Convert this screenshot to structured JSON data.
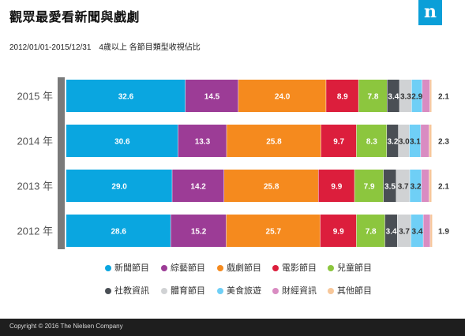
{
  "header": {
    "title": "觀眾最愛看新聞與戲劇",
    "subtitle": "2012/01/01-2015/12/31　4歲以上 各節目類型收視佔比",
    "logo_letter": "n"
  },
  "footer": {
    "copyright": "Copyright © 2016 The Nielsen Company"
  },
  "chart_data": {
    "type": "bar",
    "orientation": "horizontal",
    "stacked": true,
    "categories": [
      "2015 年",
      "2014 年",
      "2013 年",
      "2012 年"
    ],
    "series": [
      {
        "name": "新聞節目",
        "color": "#0aa6e0",
        "values": [
          32.6,
          30.6,
          29.0,
          28.6
        ]
      },
      {
        "name": "綜藝節目",
        "color": "#9c3c96",
        "values": [
          14.5,
          13.3,
          14.2,
          15.2
        ]
      },
      {
        "name": "戲劇節目",
        "color": "#f58a1e",
        "values": [
          24.0,
          25.8,
          25.8,
          25.7
        ]
      },
      {
        "name": "電影節目",
        "color": "#dc1e3c",
        "values": [
          8.9,
          9.7,
          9.9,
          9.9
        ]
      },
      {
        "name": "兒童節目",
        "color": "#8cc63e",
        "values": [
          7.8,
          8.3,
          7.9,
          7.8
        ]
      },
      {
        "name": "社教資訊",
        "color": "#4a4f55",
        "values": [
          3.4,
          3.2,
          3.5,
          3.4
        ]
      },
      {
        "name": "體育節目",
        "color": "#d0d2d4",
        "values": [
          3.3,
          3.0,
          3.7,
          3.7
        ]
      },
      {
        "name": "美食旅遊",
        "color": "#6fcff6",
        "values": [
          2.9,
          3.1,
          3.2,
          3.4
        ]
      },
      {
        "name": "財經資訊",
        "color": "#d98cc2",
        "values": [
          2.1,
          2.3,
          2.1,
          1.9
        ]
      },
      {
        "name": "其他節目",
        "color": "#f7c79a",
        "values": [
          0.5,
          0.7,
          0.7,
          0.6
        ]
      }
    ],
    "bar_labels": [
      [
        "32.6",
        "14.5",
        "24.0",
        "8.9",
        "7.8",
        "3.4",
        "3.3",
        "2.9",
        "2.1",
        ""
      ],
      [
        "30.6",
        "13.3",
        "25.8",
        "9.7",
        "8.3",
        "3.2",
        "3.0",
        "3.1",
        "2.3",
        ""
      ],
      [
        "29.0",
        "14.2",
        "25.8",
        "9.9",
        "7.9",
        "3.5",
        "3.7",
        "3.2",
        "2.1",
        ""
      ],
      [
        "28.6",
        "15.2",
        "25.7",
        "9.9",
        "7.8",
        "3.4",
        "3.7",
        "3.4",
        "1.9",
        ""
      ]
    ],
    "xlim": [
      0,
      100
    ],
    "grid": false,
    "legend_position": "bottom"
  }
}
